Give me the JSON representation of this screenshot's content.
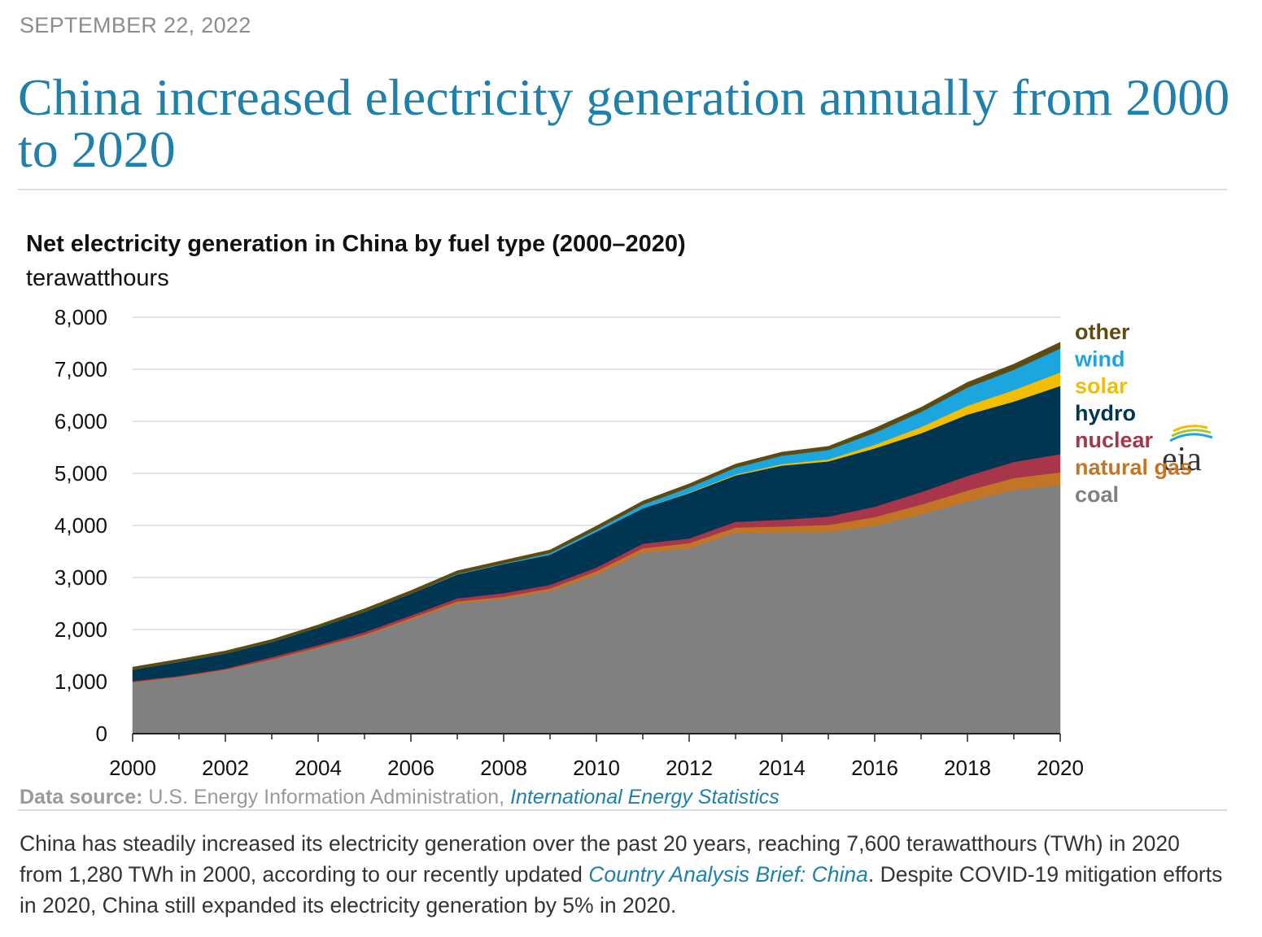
{
  "article": {
    "date": "SEPTEMBER 22, 2022",
    "headline": "China increased electricity generation annually from 2000 to 2020"
  },
  "logo": {
    "text": "eia"
  },
  "chart_data": {
    "type": "area",
    "stacked": true,
    "title": "Net electricity generation in China by fuel type (2000–2020)",
    "ylabel": "terawatthours",
    "xlabel": "",
    "ylim": [
      0,
      8000
    ],
    "yticks": [
      0,
      1000,
      2000,
      3000,
      4000,
      5000,
      6000,
      7000,
      8000
    ],
    "ytick_labels": [
      "0",
      "1,000",
      "2,000",
      "3,000",
      "4,000",
      "5,000",
      "6,000",
      "7,000",
      "8,000"
    ],
    "xlim": [
      2000,
      2020
    ],
    "xtick_labels": [
      "2000",
      "2002",
      "2004",
      "2006",
      "2008",
      "2010",
      "2012",
      "2014",
      "2016",
      "2018",
      "2020"
    ],
    "grid": true,
    "legend_placement": "right",
    "x": [
      2000,
      2001,
      2002,
      2003,
      2004,
      2005,
      2006,
      2007,
      2008,
      2009,
      2010,
      2011,
      2012,
      2013,
      2014,
      2015,
      2016,
      2017,
      2018,
      2019,
      2020
    ],
    "series": [
      {
        "name": "coal",
        "color": "#808080",
        "values": [
          980,
          1080,
          1220,
          1420,
          1640,
          1880,
          2190,
          2500,
          2590,
          2740,
          3050,
          3480,
          3560,
          3860,
          3870,
          3870,
          3990,
          4210,
          4460,
          4680,
          4770
        ]
      },
      {
        "name": "natural gas",
        "color": "#c37526",
        "values": [
          10,
          10,
          10,
          10,
          20,
          20,
          30,
          40,
          40,
          50,
          70,
          80,
          100,
          100,
          110,
          140,
          170,
          190,
          210,
          230,
          250
        ]
      },
      {
        "name": "nuclear",
        "color": "#a8364a",
        "values": [
          20,
          20,
          20,
          40,
          40,
          50,
          50,
          60,
          70,
          70,
          70,
          90,
          90,
          110,
          130,
          160,
          200,
          240,
          280,
          310,
          350
        ]
      },
      {
        "name": "hydro",
        "color": "#003652",
        "values": [
          220,
          270,
          290,
          290,
          340,
          390,
          420,
          460,
          560,
          580,
          690,
          680,
          870,
          890,
          1040,
          1060,
          1120,
          1130,
          1180,
          1160,
          1310
        ]
      },
      {
        "name": "solar",
        "color": "#f3bd02",
        "values": [
          0,
          0,
          0,
          0,
          0,
          0,
          0,
          0,
          0,
          0,
          0,
          0,
          10,
          20,
          30,
          40,
          70,
          120,
          170,
          220,
          260
        ]
      },
      {
        "name": "wind",
        "color": "#1ca6e0",
        "values": [
          0,
          0,
          0,
          0,
          0,
          0,
          0,
          10,
          10,
          30,
          40,
          70,
          100,
          130,
          160,
          180,
          230,
          290,
          350,
          390,
          460
        ]
      },
      {
        "name": "other",
        "color": "#5e4b11",
        "values": [
          50,
          50,
          50,
          50,
          50,
          60,
          60,
          60,
          60,
          60,
          70,
          70,
          70,
          70,
          70,
          70,
          90,
          90,
          100,
          110,
          120
        ]
      }
    ],
    "source_label": "Data source:",
    "source_text": "U.S. Energy Information Administration,",
    "source_link": "International Energy Statistics"
  },
  "body": {
    "text_1": "China has steadily increased its electricity generation over the past 20 years, reaching 7,600 terawatthours (TWh) in 2020 from 1,280 TWh in 2000, according to our recently updated ",
    "link_text": "Country Analysis Brief: China",
    "text_2": ". Despite COVID-19 mitigation efforts in 2020, China still expanded its electricity generation by 5% in 2020."
  }
}
